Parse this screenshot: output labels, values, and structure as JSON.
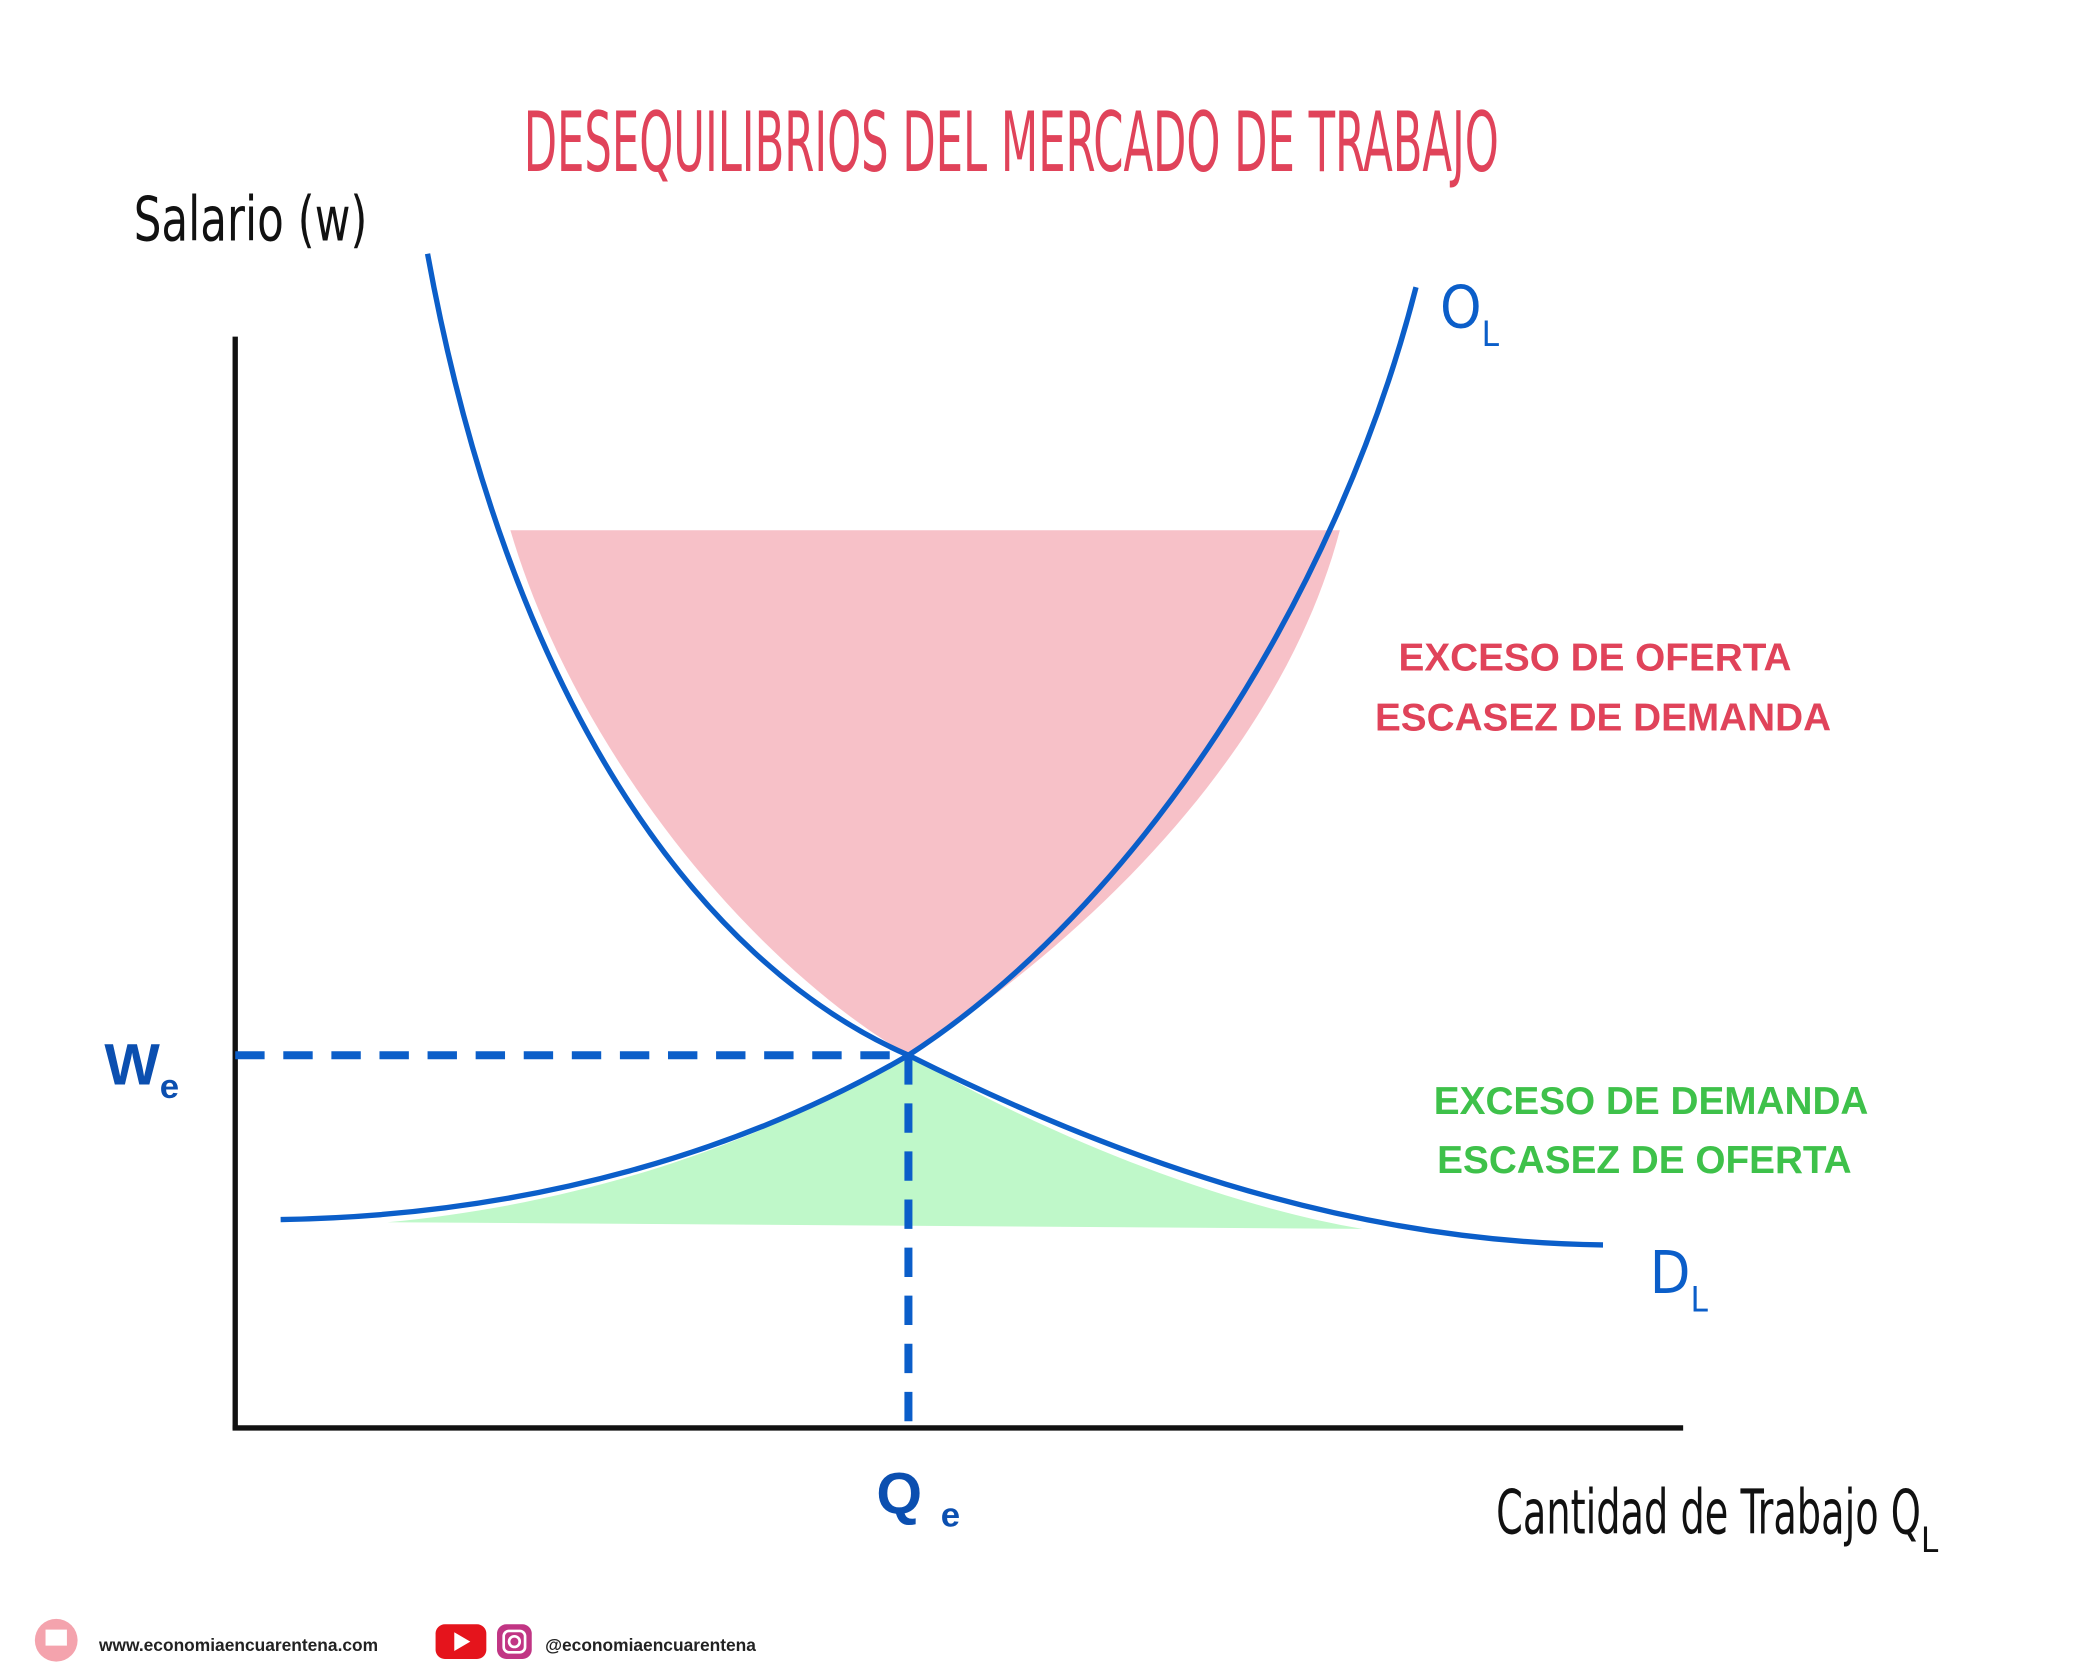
{
  "title": "DESEQUILIBRIOS DEL MERCADO DE TRABAJO",
  "y_axis_label": "Salario (w)",
  "x_axis_label": {
    "main": "Cantidad de Trabajo Q",
    "sub": "L"
  },
  "supply_label": {
    "main": "O",
    "sub": "L"
  },
  "demand_label": {
    "main": "D",
    "sub": "L"
  },
  "wage_label": {
    "main": "W",
    "sub": "e"
  },
  "quantity_label": {
    "main": "Q",
    "sub": "e"
  },
  "excess_supply": [
    "EXCESO DE OFERTA",
    "ESCASEZ DE DEMANDA"
  ],
  "excess_demand": [
    "EXCESO DE DEMANDA",
    "ESCASEZ DE OFERTA"
  ],
  "footer": {
    "website": "www.economiaencuarentena.com",
    "handle": "@economiaencuarentena"
  }
}
